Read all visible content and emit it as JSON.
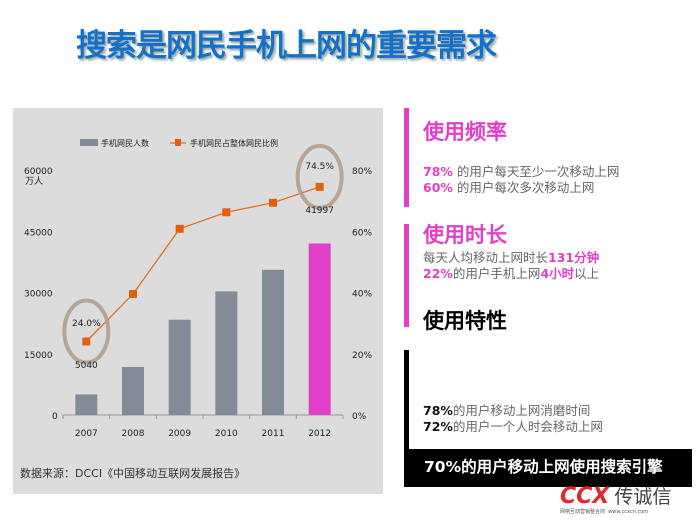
{
  "title": "搜索是网民手机上网的重要需求",
  "chart_data": {
    "type": "bar",
    "categories": [
      "2007",
      "2008",
      "2009",
      "2010",
      "2011",
      "2012"
    ],
    "series": [
      {
        "name": "手机网民人数",
        "type": "bar",
        "axis": "left",
        "values": [
          5040,
          11760,
          23344,
          30274,
          35558,
          41997
        ],
        "colors": [
          "#838b99",
          "#838b99",
          "#838b99",
          "#838b99",
          "#838b99",
          "#e040c8"
        ]
      },
      {
        "name": "手机网民占整体网民比例",
        "type": "line",
        "axis": "right",
        "values": [
          24.0,
          39.5,
          60.8,
          66.2,
          69.3,
          74.5
        ],
        "color": "#e07020"
      }
    ],
    "left_axis": {
      "ticks": [
        "0",
        "15000",
        "30000",
        "45000",
        "60000"
      ],
      "unit": "万人",
      "range": [
        0,
        60000
      ]
    },
    "right_axis": {
      "ticks": [
        "0%",
        "20%",
        "40%",
        "60%",
        "80%"
      ],
      "range": [
        0,
        80
      ]
    },
    "annotations": [
      "24.0%",
      "5040",
      "74.5%",
      "41997"
    ],
    "legend_placement": "top",
    "grid": false
  },
  "source": "数据来源：DCCI《中国移动互联网发展报告》",
  "sections": [
    {
      "heading": "使用频率",
      "lines": [
        [
          "78%",
          " 的用户每天至少一次移动上网"
        ],
        [
          "60%",
          " 的用户每次多次移动上网"
        ]
      ]
    },
    {
      "heading": "使用时长",
      "lines": [
        [
          "每天人均移动上网时长",
          "131分钟"
        ],
        [
          "22%",
          "的用户手机上网",
          "4小时",
          "以上"
        ]
      ]
    },
    {
      "heading": "使用特性",
      "lines": [
        [
          "78%",
          "的用户移动上网消磨时间"
        ],
        [
          "72%",
          "的用户一个人时会移动上网"
        ]
      ]
    }
  ],
  "highlight": "70%的用户移动上网使用搜索引擎",
  "logo": {
    "mark": "CCX",
    "name": "传诚信",
    "tagline": "网络互动营销整合商",
    "url": "www.ccxcn.com"
  }
}
